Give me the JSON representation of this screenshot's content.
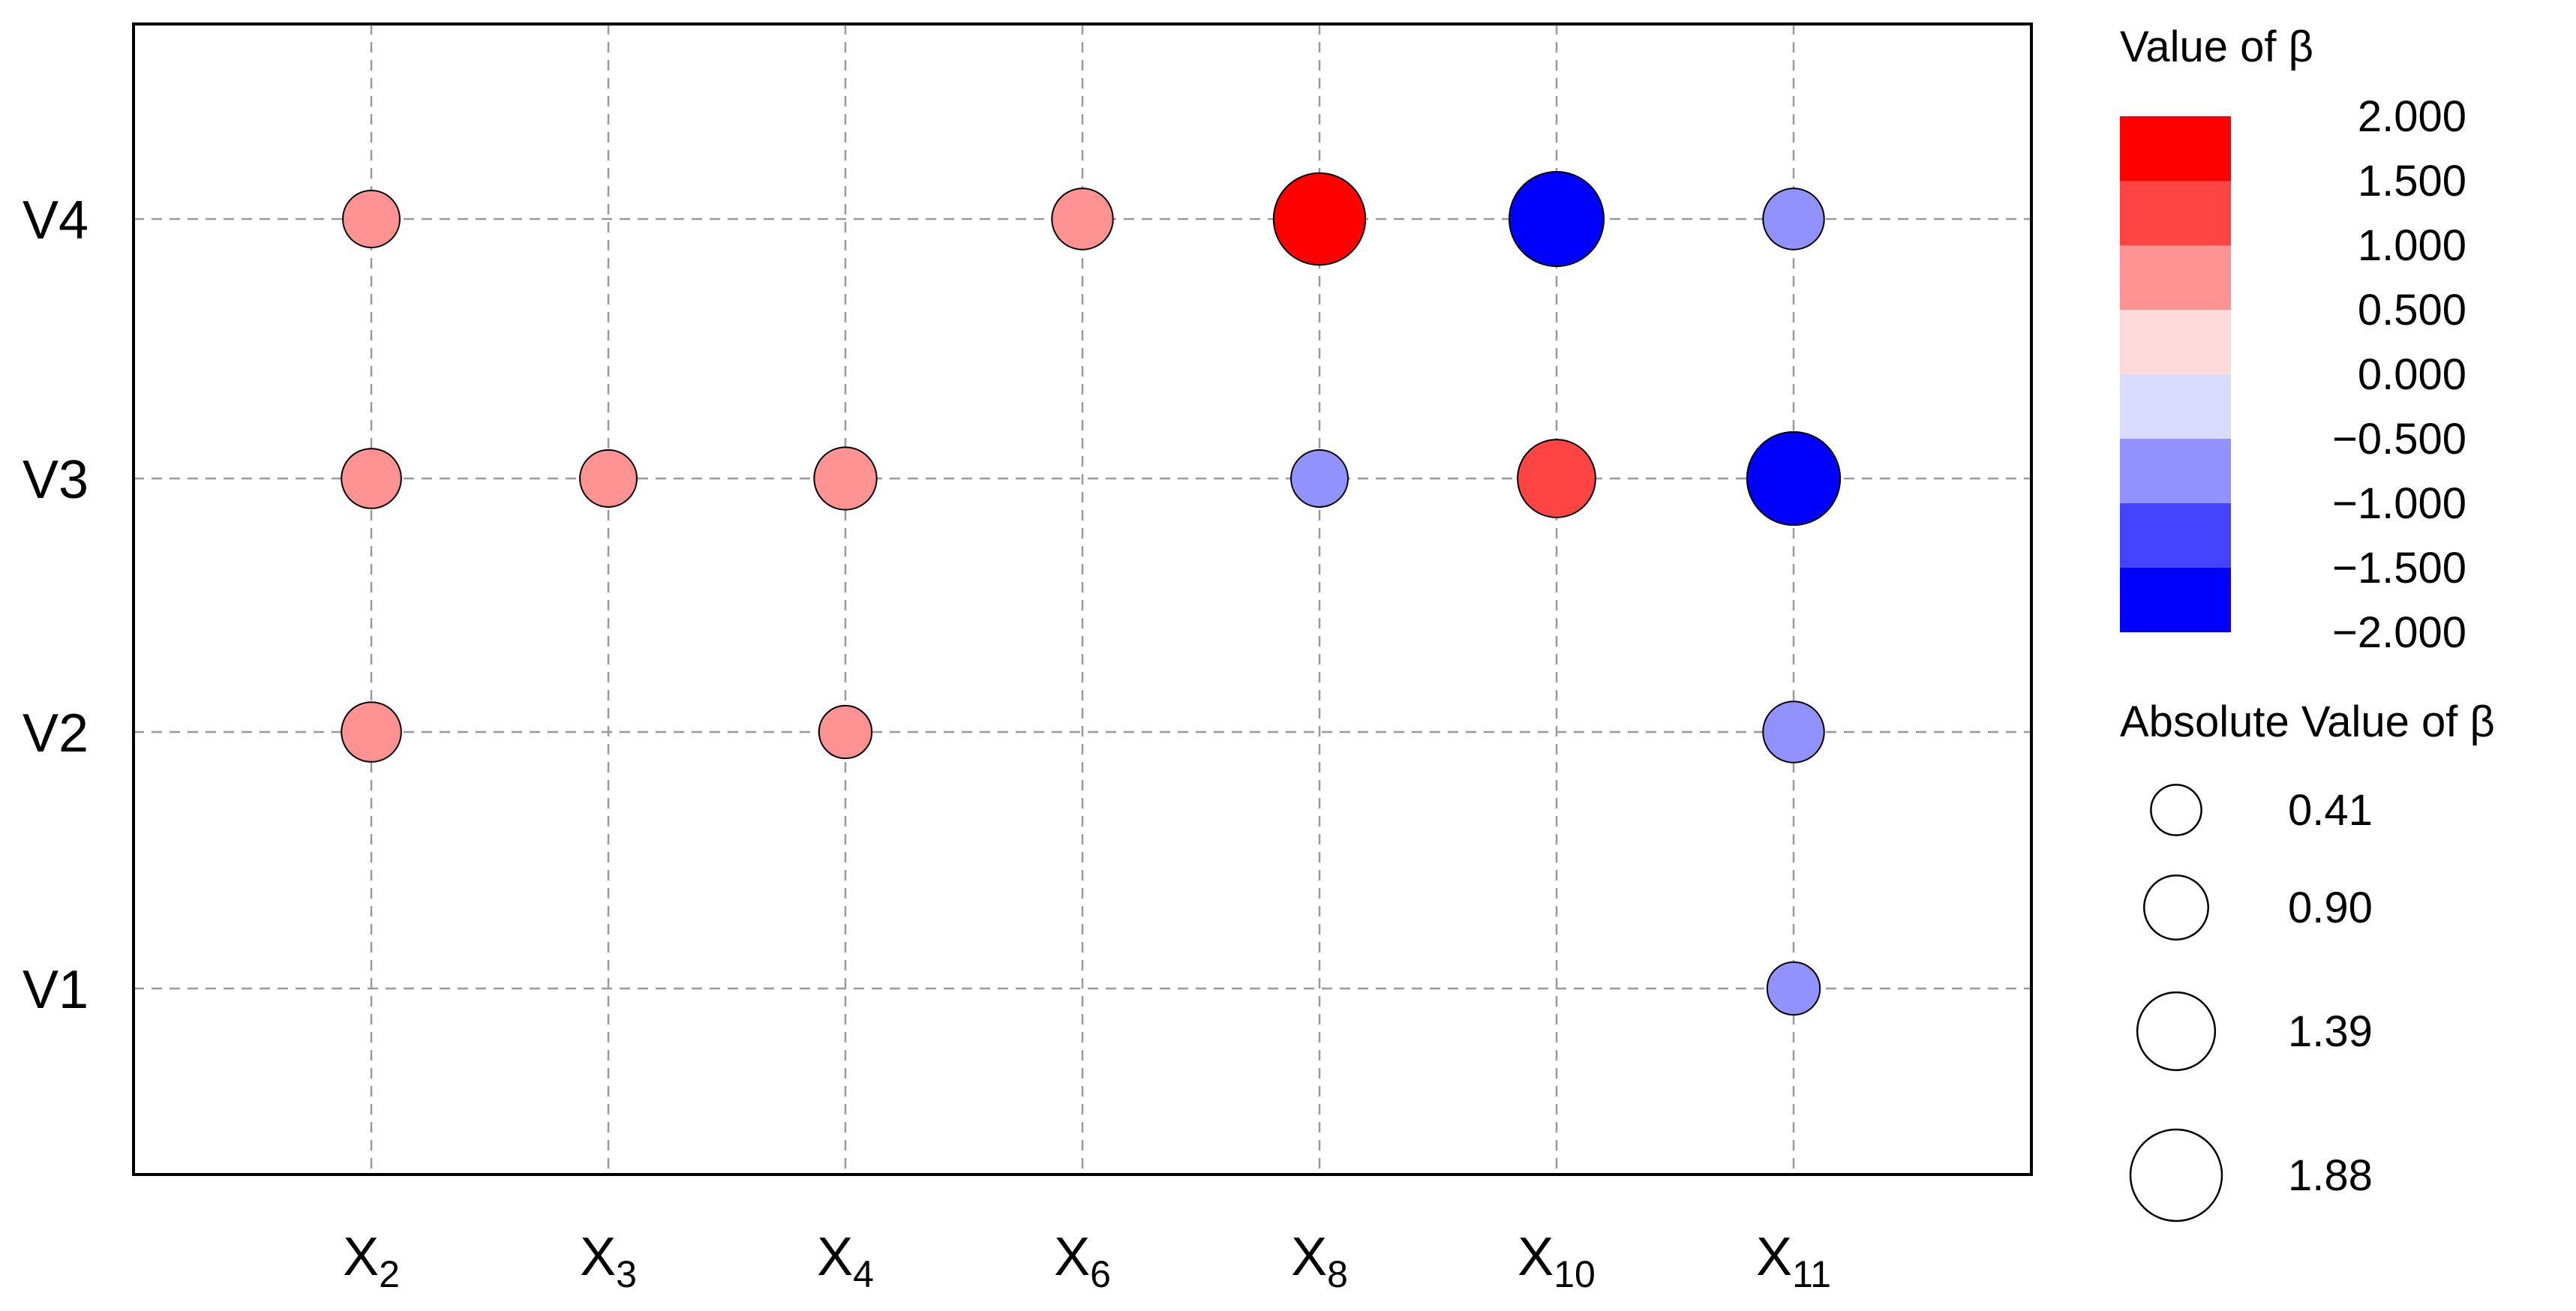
{
  "chart_data": {
    "type": "scatter",
    "subtype": "bubble-matrix",
    "title": "",
    "xlabel": "",
    "ylabel": "",
    "x_categories": [
      {
        "base": "X",
        "sub": "2"
      },
      {
        "base": "X",
        "sub": "3"
      },
      {
        "base": "X",
        "sub": "4"
      },
      {
        "base": "X",
        "sub": "6"
      },
      {
        "base": "X",
        "sub": "8"
      },
      {
        "base": "X",
        "sub": "10"
      },
      {
        "base": "X",
        "sub": "11"
      }
    ],
    "y_categories": [
      "V1",
      "V2",
      "V3",
      "V4"
    ],
    "grid": true,
    "points": [
      {
        "x": "X2",
        "y": "V4",
        "beta": 0.75
      },
      {
        "x": "X6",
        "y": "V4",
        "beta": 0.9
      },
      {
        "x": "X8",
        "y": "V4",
        "beta": 2.0
      },
      {
        "x": "X10",
        "y": "V4",
        "beta": -2.1
      },
      {
        "x": "X11",
        "y": "V4",
        "beta": -0.9
      },
      {
        "x": "X2",
        "y": "V3",
        "beta": 0.85
      },
      {
        "x": "X3",
        "y": "V3",
        "beta": 0.75
      },
      {
        "x": "X4",
        "y": "V3",
        "beta": 0.95
      },
      {
        "x": "X8",
        "y": "V3",
        "beta": -0.75
      },
      {
        "x": "X10",
        "y": "V3",
        "beta": 1.5
      },
      {
        "x": "X11",
        "y": "V3",
        "beta": -2.05
      },
      {
        "x": "X2",
        "y": "V2",
        "beta": 0.85
      },
      {
        "x": "X4",
        "y": "V2",
        "beta": 0.6
      },
      {
        "x": "X11",
        "y": "V2",
        "beta": -0.9
      },
      {
        "x": "X11",
        "y": "V1",
        "beta": -0.6
      }
    ],
    "color_legend": {
      "title": "Value of β",
      "placement": "top-right",
      "labels": [
        "2.000",
        "1.500",
        "1.000",
        "0.500",
        "0.000",
        "−0.500",
        "−1.000",
        "−1.500",
        "−2.000"
      ],
      "bands": [
        "#ff0000",
        "#ff4444",
        "#ff9292",
        "#ffdada",
        "#dadaff",
        "#9292ff",
        "#4444ff",
        "#0000ff"
      ]
    },
    "size_legend": {
      "title": "Absolute Value of β",
      "placement": "bottom-right",
      "values": [
        "0.41",
        "0.90",
        "1.39",
        "1.88"
      ]
    }
  }
}
